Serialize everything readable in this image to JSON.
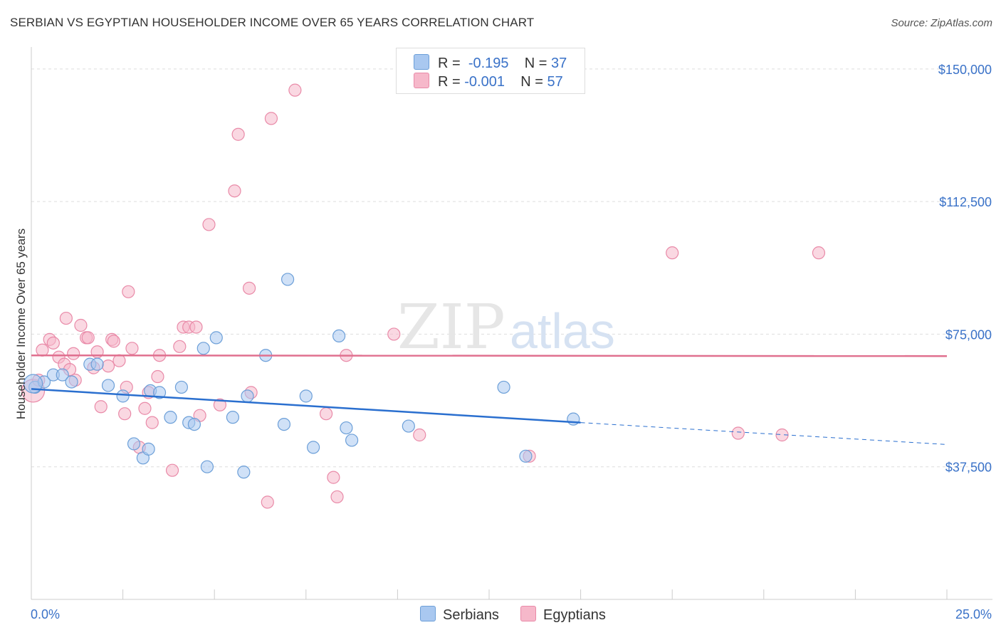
{
  "header": {
    "title": "SERBIAN VS EGYPTIAN HOUSEHOLDER INCOME OVER 65 YEARS CORRELATION CHART",
    "source": "Source: ZipAtlas.com"
  },
  "watermark": {
    "part1": "ZIP",
    "part2": "atlas"
  },
  "legend": {
    "rows": [
      {
        "r_label": "R =",
        "r_value": "-0.195",
        "n_label": "N =",
        "n_value": "37",
        "color": "#a9c8f0"
      },
      {
        "r_label": "R =",
        "r_value": "-0.001",
        "n_label": "N =",
        "n_value": "57",
        "color": "#f6b8ca"
      }
    ]
  },
  "bottom_legend": {
    "serbians": "Serbians",
    "egyptians": "Egyptians"
  },
  "colors": {
    "serbians_fill": "#a9c8f0",
    "serbians_stroke": "#6c9fd8",
    "serbians_line": "#2a6fcf",
    "egyptians_fill": "#f6b8ca",
    "egyptians_stroke": "#e98aa8",
    "egyptians_line": "#e0708f",
    "axis_value": "#3a72c8"
  },
  "chart_data": {
    "type": "scatter",
    "title": "SERBIAN VS EGYPTIAN HOUSEHOLDER INCOME OVER 65 YEARS CORRELATION CHART",
    "xlabel": "",
    "ylabel": "Householder Income Over 65 years",
    "xlim": [
      0,
      25
    ],
    "ylim": [
      0,
      155000
    ],
    "x_tick_labels": {
      "min": "0.0%",
      "max": "25.0%"
    },
    "y_ticks": [
      37500,
      75000,
      112500,
      150000
    ],
    "y_tick_labels": [
      "$37,500",
      "$75,000",
      "$112,500",
      "$150,000"
    ],
    "grid": true,
    "legend_position": "top-center",
    "series": [
      {
        "name": "Serbians",
        "r": -0.195,
        "n": 37,
        "trend": {
          "x_start": 0,
          "y_start": 59500,
          "x_solid_end": 15,
          "y_solid_end": 50000,
          "x_end": 25,
          "y_end": 43800
        },
        "points": [
          [
            0.1,
            60000
          ],
          [
            0.35,
            61500
          ],
          [
            0.6,
            63500
          ],
          [
            0.85,
            63500
          ],
          [
            1.1,
            61500
          ],
          [
            1.6,
            66500
          ],
          [
            1.8,
            66500
          ],
          [
            2.1,
            60500
          ],
          [
            2.5,
            57500
          ],
          [
            2.8,
            44000
          ],
          [
            3.05,
            40000
          ],
          [
            3.2,
            42500
          ],
          [
            3.25,
            59000
          ],
          [
            3.5,
            58500
          ],
          [
            3.8,
            51500
          ],
          [
            4.1,
            60000
          ],
          [
            4.3,
            50000
          ],
          [
            4.45,
            49500
          ],
          [
            4.7,
            71000
          ],
          [
            4.8,
            37500
          ],
          [
            5.05,
            74000
          ],
          [
            5.5,
            51500
          ],
          [
            5.8,
            36000
          ],
          [
            5.9,
            57500
          ],
          [
            6.4,
            69000
          ],
          [
            6.9,
            49500
          ],
          [
            7.0,
            90500
          ],
          [
            7.5,
            57500
          ],
          [
            7.7,
            43000
          ],
          [
            8.4,
            74500
          ],
          [
            8.6,
            48500
          ],
          [
            8.75,
            45000
          ],
          [
            10.3,
            49000
          ],
          [
            12.9,
            60000
          ],
          [
            13.5,
            40500
          ],
          [
            14.8,
            51000
          ],
          [
            0.05,
            61000
          ]
        ]
      },
      {
        "name": "Egyptians",
        "r": -0.001,
        "n": 57,
        "trend": {
          "x_start": 0,
          "y_start": 69000,
          "x_end": 25,
          "y_end": 68800
        },
        "points": [
          [
            0.05,
            59000
          ],
          [
            0.2,
            62000
          ],
          [
            0.3,
            70500
          ],
          [
            0.5,
            73500
          ],
          [
            0.6,
            72500
          ],
          [
            0.75,
            68500
          ],
          [
            0.9,
            66500
          ],
          [
            0.95,
            79500
          ],
          [
            1.05,
            65000
          ],
          [
            1.15,
            69500
          ],
          [
            1.35,
            77500
          ],
          [
            1.5,
            74000
          ],
          [
            1.55,
            74000
          ],
          [
            1.7,
            65500
          ],
          [
            1.8,
            70000
          ],
          [
            1.9,
            54500
          ],
          [
            2.1,
            66000
          ],
          [
            2.2,
            73500
          ],
          [
            2.25,
            73000
          ],
          [
            2.4,
            67500
          ],
          [
            2.55,
            52500
          ],
          [
            2.6,
            60000
          ],
          [
            2.65,
            87000
          ],
          [
            2.75,
            71000
          ],
          [
            2.95,
            43000
          ],
          [
            3.1,
            54000
          ],
          [
            3.2,
            58500
          ],
          [
            3.3,
            50000
          ],
          [
            3.5,
            69000
          ],
          [
            3.85,
            36500
          ],
          [
            4.05,
            71500
          ],
          [
            4.15,
            77000
          ],
          [
            4.3,
            77000
          ],
          [
            4.5,
            77000
          ],
          [
            4.6,
            52000
          ],
          [
            4.85,
            106000
          ],
          [
            5.15,
            55000
          ],
          [
            5.55,
            115500
          ],
          [
            5.65,
            131500
          ],
          [
            5.95,
            88000
          ],
          [
            6.0,
            58500
          ],
          [
            6.45,
            27500
          ],
          [
            6.55,
            136000
          ],
          [
            7.2,
            144000
          ],
          [
            8.05,
            52500
          ],
          [
            8.25,
            34500
          ],
          [
            8.35,
            29000
          ],
          [
            8.6,
            69000
          ],
          [
            9.9,
            75000
          ],
          [
            10.6,
            46500
          ],
          [
            13.6,
            40500
          ],
          [
            17.5,
            98000
          ],
          [
            19.3,
            47000
          ],
          [
            21.5,
            98000
          ],
          [
            20.5,
            46500
          ],
          [
            1.2,
            62000
          ],
          [
            3.45,
            63000
          ]
        ]
      }
    ]
  }
}
